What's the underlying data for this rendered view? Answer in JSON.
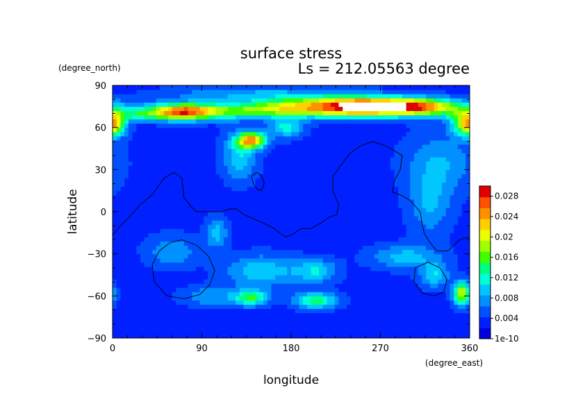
{
  "chart_data": {
    "type": "heatmap",
    "title": "surface stress",
    "subtitle": "Ls = 212.05563 degree",
    "xlabel": "longitude",
    "ylabel": "latitude",
    "x_unit": "(degree_east)",
    "y_unit": "(degree_north)",
    "xlim": [
      0,
      360
    ],
    "ylim": [
      -90,
      90
    ],
    "x_ticks": [
      "0",
      "90",
      "180",
      "270",
      "360"
    ],
    "y_ticks": [
      "90",
      "60",
      "30",
      "0",
      "−30",
      "−60",
      "−90"
    ],
    "x_tick_values": [
      0,
      90,
      180,
      270,
      360
    ],
    "y_tick_values": [
      90,
      60,
      30,
      0,
      -30,
      -60,
      -90
    ],
    "colorbar": {
      "min": 1e-10,
      "max": 0.03,
      "tick_labels": [
        "1e-10",
        "0.004",
        "0.008",
        "0.012",
        "0.016",
        "0.02",
        "0.024",
        "0.028"
      ],
      "tick_values": [
        0,
        0.004,
        0.008,
        0.012,
        0.016,
        0.02,
        0.024,
        0.028
      ],
      "colors": [
        "#0000e0",
        "#0020ff",
        "#0050ff",
        "#0090ff",
        "#00c8ff",
        "#00ffd8",
        "#00ff80",
        "#40ff00",
        "#a0ff00",
        "#e8ff00",
        "#ffd000",
        "#ff9000",
        "#ff5000",
        "#e00000"
      ],
      "saturation_color": "#ffffff"
    },
    "background_value": 0.0035,
    "features": [
      {
        "lon": 90,
        "lat": 72,
        "slon": 45,
        "slat": 4,
        "value": 0.014
      },
      {
        "lon": 70,
        "lat": 71,
        "slon": 20,
        "slat": 4,
        "value": 0.012
      },
      {
        "lon": 20,
        "lat": 69,
        "slon": 25,
        "slat": 3,
        "value": 0.006
      },
      {
        "lon": 165,
        "lat": 74,
        "slon": 25,
        "slat": 4,
        "value": 0.008
      },
      {
        "lon": 240,
        "lat": 75,
        "slon": 45,
        "slat": 5,
        "value": 0.026
      },
      {
        "lon": 253,
        "lat": 76,
        "slon": 12,
        "slat": 2,
        "value": 0.009
      },
      {
        "lon": 310,
        "lat": 75,
        "slon": 30,
        "slat": 4,
        "value": 0.018
      },
      {
        "lon": 355,
        "lat": 64,
        "slon": 10,
        "slat": 6,
        "value": 0.012
      },
      {
        "lon": 2,
        "lat": 61,
        "slon": 8,
        "slat": 5,
        "value": 0.011
      },
      {
        "lon": 140,
        "lat": 84,
        "slon": 60,
        "slat": 4,
        "value": 0.005
      },
      {
        "lon": 140,
        "lat": 51,
        "slon": 10,
        "slat": 4,
        "value": 0.02
      },
      {
        "lon": 128,
        "lat": 40,
        "slon": 12,
        "slat": 12,
        "value": 0.007
      },
      {
        "lon": 175,
        "lat": 60,
        "slon": 12,
        "slat": 5,
        "value": 0.008
      },
      {
        "lon": 105,
        "lat": -15,
        "slon": 8,
        "slat": 8,
        "value": 0.006
      },
      {
        "lon": 60,
        "lat": -28,
        "slon": 18,
        "slat": 8,
        "value": 0.005
      },
      {
        "lon": 150,
        "lat": -42,
        "slon": 25,
        "slat": 8,
        "value": 0.007
      },
      {
        "lon": 205,
        "lat": -42,
        "slon": 15,
        "slat": 6,
        "value": 0.007
      },
      {
        "lon": 140,
        "lat": -61,
        "slon": 12,
        "slat": 4,
        "value": 0.011
      },
      {
        "lon": 205,
        "lat": -63,
        "slon": 15,
        "slat": 4,
        "value": 0.011
      },
      {
        "lon": 100,
        "lat": -60,
        "slon": 20,
        "slat": 5,
        "value": 0.005
      },
      {
        "lon": 295,
        "lat": -32,
        "slon": 25,
        "slat": 6,
        "value": 0.006
      },
      {
        "lon": 325,
        "lat": -45,
        "slon": 10,
        "slat": 6,
        "value": 0.007
      },
      {
        "lon": 352,
        "lat": -58,
        "slon": 6,
        "slat": 6,
        "value": 0.016
      },
      {
        "lon": 330,
        "lat": 35,
        "slon": 25,
        "slat": 15,
        "value": 0.005
      },
      {
        "lon": 320,
        "lat": 5,
        "slon": 15,
        "slat": 15,
        "value": 0.005
      }
    ],
    "contours": [
      [
        [
          0,
          -17
        ],
        [
          8,
          -10
        ],
        [
          15,
          -5
        ],
        [
          28,
          5
        ],
        [
          40,
          12
        ],
        [
          52,
          24
        ],
        [
          62,
          28
        ],
        [
          70,
          24
        ],
        [
          72,
          10
        ],
        [
          80,
          3
        ],
        [
          85,
          0
        ],
        [
          100,
          0
        ],
        [
          110,
          0
        ],
        [
          118,
          2
        ],
        [
          125,
          2
        ],
        [
          132,
          -2
        ],
        [
          142,
          -5
        ],
        [
          152,
          -8
        ],
        [
          163,
          -12
        ],
        [
          170,
          -16
        ],
        [
          175,
          -18
        ],
        [
          182,
          -16
        ],
        [
          190,
          -12
        ],
        [
          200,
          -12
        ],
        [
          210,
          -8
        ],
        [
          218,
          -4
        ],
        [
          226,
          -2
        ],
        [
          228,
          5
        ],
        [
          222,
          15
        ],
        [
          222,
          25
        ],
        [
          230,
          33
        ],
        [
          240,
          42
        ],
        [
          250,
          47
        ],
        [
          262,
          50
        ],
        [
          275,
          47
        ],
        [
          285,
          43
        ],
        [
          292,
          40
        ],
        [
          290,
          30
        ],
        [
          284,
          22
        ],
        [
          282,
          14
        ],
        [
          290,
          12
        ],
        [
          300,
          8
        ],
        [
          310,
          0
        ],
        [
          312,
          -8
        ],
        [
          314,
          -15
        ],
        [
          320,
          -22
        ],
        [
          327,
          -28
        ],
        [
          338,
          -28
        ],
        [
          350,
          -20
        ],
        [
          360,
          -18
        ]
      ],
      [
        [
          140,
          25
        ],
        [
          145,
          28
        ],
        [
          150,
          26
        ],
        [
          153,
          20
        ],
        [
          150,
          15
        ],
        [
          146,
          16
        ],
        [
          142,
          20
        ],
        [
          140,
          25
        ]
      ],
      [
        [
          70,
          -20
        ],
        [
          85,
          -24
        ],
        [
          97,
          -32
        ],
        [
          103,
          -42
        ],
        [
          98,
          -52
        ],
        [
          88,
          -59
        ],
        [
          72,
          -62
        ],
        [
          55,
          -60
        ],
        [
          42,
          -50
        ],
        [
          40,
          -38
        ],
        [
          47,
          -28
        ],
        [
          58,
          -22
        ],
        [
          70,
          -20
        ]
      ],
      [
        [
          305,
          -40
        ],
        [
          318,
          -36
        ],
        [
          330,
          -40
        ],
        [
          337,
          -48
        ],
        [
          334,
          -57
        ],
        [
          325,
          -60
        ],
        [
          312,
          -58
        ],
        [
          304,
          -50
        ],
        [
          305,
          -40
        ]
      ]
    ]
  }
}
